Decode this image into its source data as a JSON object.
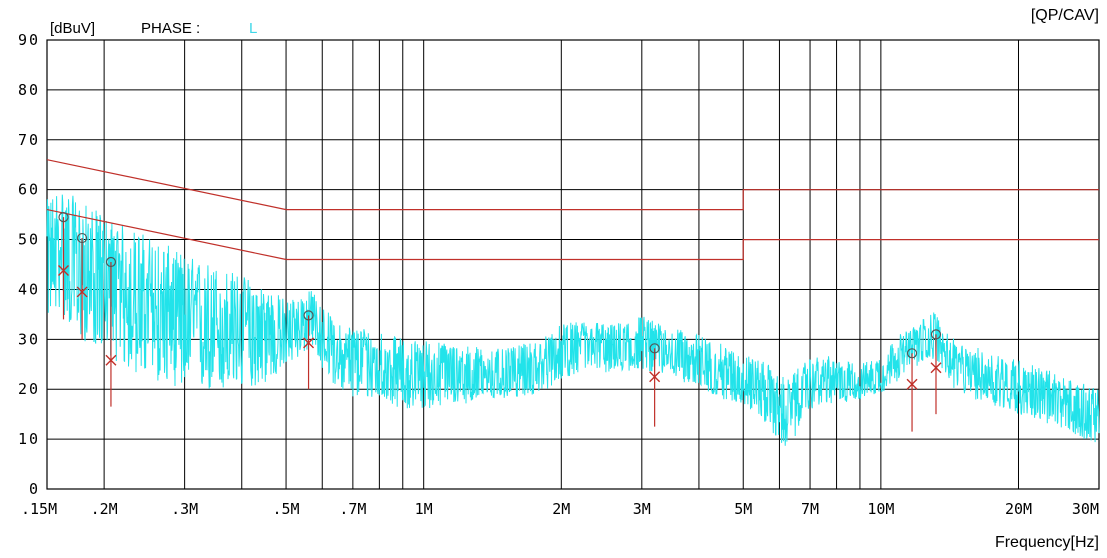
{
  "header": {
    "unit_label": "[dBuV]",
    "phase_label": "PHASE :",
    "phase_value": "L",
    "detector_label": "[QP/CAV]"
  },
  "chart_data": {
    "type": "line",
    "xscale": "log",
    "xlabel": "Frequency[Hz]",
    "ylabel": "[dBuV]",
    "xlim": [
      150000,
      30000000
    ],
    "ylim": [
      0,
      90
    ],
    "grid": true,
    "y_ticks": [
      0,
      10,
      20,
      30,
      40,
      50,
      60,
      70,
      80,
      90
    ],
    "y_tick_labels": [
      "0",
      "10",
      "20",
      "30",
      "40",
      "50",
      "60",
      "70",
      "80",
      "90"
    ],
    "x_ticks": [
      150000,
      200000,
      300000,
      500000,
      700000,
      1000000,
      2000000,
      3000000,
      5000000,
      7000000,
      10000000,
      20000000,
      30000000
    ],
    "x_tick_labels": [
      ".15M",
      ".2M",
      ".3M",
      ".5M",
      ".7M",
      "1M",
      "2M",
      "3M",
      "5M",
      "7M",
      "10M",
      "20M",
      "30M"
    ],
    "x_grid": [
      150000,
      200000,
      300000,
      400000,
      500000,
      600000,
      700000,
      800000,
      900000,
      1000000,
      2000000,
      3000000,
      4000000,
      5000000,
      6000000,
      7000000,
      8000000,
      9000000,
      10000000,
      20000000,
      30000000
    ],
    "limit_lines": [
      {
        "name": "QP",
        "points": [
          [
            150000,
            66
          ],
          [
            500000,
            56
          ],
          [
            5000000,
            56
          ],
          [
            5000000,
            60
          ],
          [
            30000000,
            60
          ]
        ]
      },
      {
        "name": "AV",
        "points": [
          [
            150000,
            56
          ],
          [
            500000,
            46
          ],
          [
            5000000,
            46
          ],
          [
            5000000,
            50
          ],
          [
            30000000,
            50
          ]
        ]
      }
    ],
    "spectrum_envelope": {
      "x": [
        150000,
        160000,
        175000,
        200000,
        220000,
        250000,
        300000,
        350000,
        400000,
        450000,
        500000,
        540000,
        570000,
        600000,
        650000,
        700000,
        800000,
        900000,
        1000000,
        1200000,
        1500000,
        1800000,
        2000000,
        2300000,
        2600000,
        3000000,
        3300000,
        3600000,
        4000000,
        4500000,
        5000000,
        5500000,
        6000000,
        6300000,
        6700000,
        7000000,
        7500000,
        8000000,
        9000000,
        10000000,
        11000000,
        12000000,
        13000000,
        13500000,
        14000000,
        15000000,
        17000000,
        20000000,
        23000000,
        26000000,
        30000000
      ],
      "max": [
        58,
        61,
        58,
        55,
        53,
        51,
        47,
        45,
        43,
        41,
        38,
        39,
        40,
        37,
        33,
        33,
        32,
        30,
        30,
        29,
        28,
        30,
        33,
        34,
        33,
        35,
        33,
        32,
        31,
        29,
        27,
        26,
        23,
        22,
        25,
        26,
        27,
        26,
        25,
        27,
        31,
        33,
        36,
        34,
        31,
        29,
        28,
        26,
        24,
        22,
        20
      ],
      "min": [
        34,
        36,
        30,
        28,
        24,
        22,
        20,
        19,
        20,
        21,
        24,
        27,
        28,
        24,
        20,
        18,
        18,
        16,
        16,
        17,
        18,
        19,
        22,
        24,
        23,
        24,
        23,
        22,
        20,
        18,
        17,
        14,
        9,
        8,
        13,
        16,
        17,
        17,
        18,
        19,
        22,
        24,
        26,
        25,
        21,
        19,
        17,
        15,
        13,
        11,
        9
      ]
    },
    "qp_markers": [
      {
        "x": 163000,
        "y": 54.5
      },
      {
        "x": 179000,
        "y": 50.3
      },
      {
        "x": 207000,
        "y": 45.5
      },
      {
        "x": 560000,
        "y": 34.8
      },
      {
        "x": 3200000,
        "y": 28.2
      },
      {
        "x": 11700000,
        "y": 27.2
      },
      {
        "x": 13200000,
        "y": 31.0
      }
    ],
    "av_markers": [
      {
        "x": 163000,
        "y": 43.8
      },
      {
        "x": 179000,
        "y": 39.5
      },
      {
        "x": 207000,
        "y": 25.8
      },
      {
        "x": 560000,
        "y": 29.3
      },
      {
        "x": 3200000,
        "y": 22.5
      },
      {
        "x": 11700000,
        "y": 21.0
      },
      {
        "x": 13200000,
        "y": 24.3
      }
    ],
    "marker_stems": [
      {
        "x": 163000,
        "top": 54.5,
        "bottom": 34
      },
      {
        "x": 179000,
        "top": 50.3,
        "bottom": 30
      },
      {
        "x": 207000,
        "top": 45.5,
        "bottom": 16.5
      },
      {
        "x": 560000,
        "top": 34.8,
        "bottom": 20
      },
      {
        "x": 3200000,
        "top": 28.2,
        "bottom": 12.5
      },
      {
        "x": 11700000,
        "top": 27.2,
        "bottom": 11.5
      },
      {
        "x": 13200000,
        "top": 31.0,
        "bottom": 15
      }
    ],
    "colors": {
      "spectrum": "#22e3ea",
      "limits": "#c0302a",
      "markers": "#c0302a",
      "qp_marker": "#555555",
      "grid": "#000000",
      "phase_value": "#3fd7e8"
    }
  }
}
